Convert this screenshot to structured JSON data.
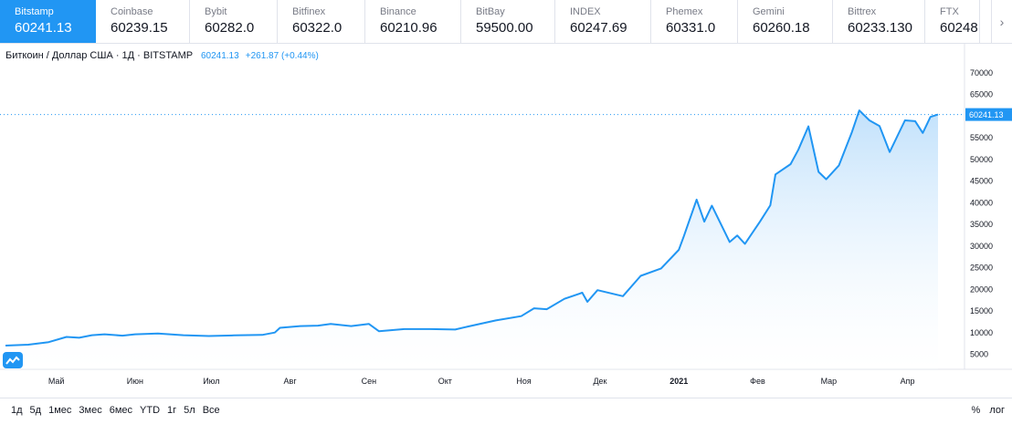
{
  "tabs": [
    {
      "name": "Bitstamp",
      "price": "60241.13",
      "active": true
    },
    {
      "name": "Coinbase",
      "price": "60239.15"
    },
    {
      "name": "Bybit",
      "price": "60282.0"
    },
    {
      "name": "Bitfinex",
      "price": "60322.0"
    },
    {
      "name": "Binance",
      "price": "60210.96"
    },
    {
      "name": "BitBay",
      "price": "59500.00"
    },
    {
      "name": "INDEX",
      "price": "60247.69"
    },
    {
      "name": "Phemex",
      "price": "60331.0"
    },
    {
      "name": "Gemini",
      "price": "60260.18"
    },
    {
      "name": "Bittrex",
      "price": "60233.130"
    },
    {
      "name": "FTX",
      "price": "60248"
    }
  ],
  "tabs_arrow_icon": "chevron-right-icon",
  "legend": {
    "symbol": "Биткоин / Доллар США · 1Д · BITSTAMP",
    "value": "60241.13",
    "change": "+261.87 (+0.44%)"
  },
  "last_price_label": "60241.13",
  "ranges": [
    "1д",
    "5д",
    "1мес",
    "3мес",
    "6мес",
    "YTD",
    "1г",
    "5л",
    "Все"
  ],
  "right_controls": {
    "percent": "%",
    "log": "лог"
  },
  "colors": {
    "accent": "#2196f3",
    "line": "#2196f3",
    "fill_top": "#bbdefb",
    "fill_bottom": "#ffffff"
  },
  "chart_data": {
    "type": "area",
    "title": "",
    "xlabel": "",
    "ylabel": "",
    "x_tick_labels": [
      "Май",
      "Июн",
      "Июл",
      "Авг",
      "Сен",
      "Окт",
      "Ноя",
      "Дек",
      "2021",
      "Фев",
      "Мар",
      "Апр"
    ],
    "y_tick_labels": [
      "5000",
      "10000",
      "15000",
      "20000",
      "25000",
      "30000",
      "35000",
      "40000",
      "45000",
      "50000",
      "55000",
      "60000",
      "65000",
      "70000"
    ],
    "ylim": [
      0,
      72000
    ],
    "x_range": [
      "2020-04-11",
      "2021-04-13"
    ],
    "grid": false,
    "legend_position": "top-left",
    "series": [
      {
        "values": [
          {
            "x": "2020-04-11",
            "y": 6900
          },
          {
            "x": "2020-04-20",
            "y": 7100
          },
          {
            "x": "2020-04-28",
            "y": 7700
          },
          {
            "x": "2020-05-05",
            "y": 8900
          },
          {
            "x": "2020-05-10",
            "y": 8700
          },
          {
            "x": "2020-05-15",
            "y": 9300
          },
          {
            "x": "2020-05-20",
            "y": 9500
          },
          {
            "x": "2020-05-27",
            "y": 9200
          },
          {
            "x": "2020-06-01",
            "y": 9500
          },
          {
            "x": "2020-06-10",
            "y": 9700
          },
          {
            "x": "2020-06-20",
            "y": 9300
          },
          {
            "x": "2020-06-30",
            "y": 9100
          },
          {
            "x": "2020-07-10",
            "y": 9250
          },
          {
            "x": "2020-07-21",
            "y": 9350
          },
          {
            "x": "2020-07-26",
            "y": 9900
          },
          {
            "x": "2020-07-28",
            "y": 11000
          },
          {
            "x": "2020-08-05",
            "y": 11400
          },
          {
            "x": "2020-08-12",
            "y": 11500
          },
          {
            "x": "2020-08-17",
            "y": 11900
          },
          {
            "x": "2020-08-25",
            "y": 11400
          },
          {
            "x": "2020-09-01",
            "y": 11900
          },
          {
            "x": "2020-09-05",
            "y": 10200
          },
          {
            "x": "2020-09-15",
            "y": 10700
          },
          {
            "x": "2020-09-25",
            "y": 10700
          },
          {
            "x": "2020-10-05",
            "y": 10600
          },
          {
            "x": "2020-10-10",
            "y": 11300
          },
          {
            "x": "2020-10-21",
            "y": 12700
          },
          {
            "x": "2020-10-31",
            "y": 13700
          },
          {
            "x": "2020-11-05",
            "y": 15500
          },
          {
            "x": "2020-11-10",
            "y": 15300
          },
          {
            "x": "2020-11-17",
            "y": 17700
          },
          {
            "x": "2020-11-24",
            "y": 19100
          },
          {
            "x": "2020-11-26",
            "y": 17000
          },
          {
            "x": "2020-11-30",
            "y": 19700
          },
          {
            "x": "2020-12-10",
            "y": 18300
          },
          {
            "x": "2020-12-17",
            "y": 23000
          },
          {
            "x": "2020-12-25",
            "y": 24700
          },
          {
            "x": "2021-01-01",
            "y": 29000
          },
          {
            "x": "2021-01-03",
            "y": 32200
          },
          {
            "x": "2021-01-08",
            "y": 40600
          },
          {
            "x": "2021-01-11",
            "y": 35500
          },
          {
            "x": "2021-01-14",
            "y": 39200
          },
          {
            "x": "2021-01-21",
            "y": 30800
          },
          {
            "x": "2021-01-24",
            "y": 32300
          },
          {
            "x": "2021-01-27",
            "y": 30400
          },
          {
            "x": "2021-02-02",
            "y": 35600
          },
          {
            "x": "2021-02-06",
            "y": 39300
          },
          {
            "x": "2021-02-08",
            "y": 46400
          },
          {
            "x": "2021-02-14",
            "y": 48800
          },
          {
            "x": "2021-02-17",
            "y": 52100
          },
          {
            "x": "2021-02-21",
            "y": 57500
          },
          {
            "x": "2021-02-25",
            "y": 47000
          },
          {
            "x": "2021-02-28",
            "y": 45300
          },
          {
            "x": "2021-03-05",
            "y": 48500
          },
          {
            "x": "2021-03-10",
            "y": 56000
          },
          {
            "x": "2021-03-13",
            "y": 61200
          },
          {
            "x": "2021-03-17",
            "y": 58900
          },
          {
            "x": "2021-03-21",
            "y": 57600
          },
          {
            "x": "2021-03-25",
            "y": 51600
          },
          {
            "x": "2021-03-31",
            "y": 58900
          },
          {
            "x": "2021-04-04",
            "y": 58700
          },
          {
            "x": "2021-04-07",
            "y": 56000
          },
          {
            "x": "2021-04-10",
            "y": 59700
          },
          {
            "x": "2021-04-13",
            "y": 60241
          }
        ]
      }
    ]
  }
}
